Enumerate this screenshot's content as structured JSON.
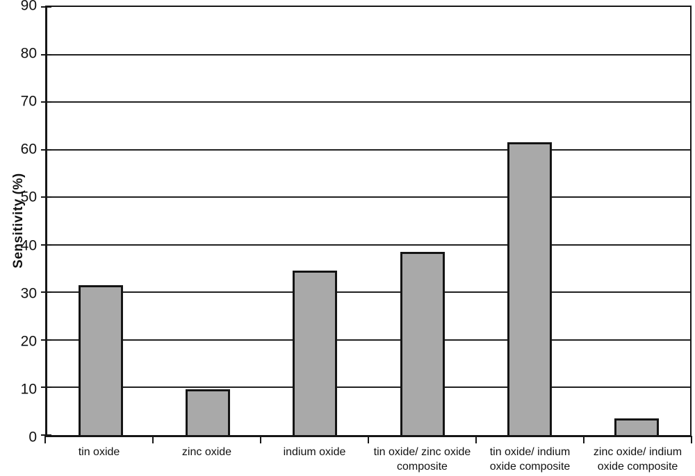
{
  "chart_data": {
    "type": "bar",
    "title": "",
    "xlabel": "",
    "ylabel": "Sensitivity (%)",
    "ylim": [
      0,
      90
    ],
    "ytick_step": 10,
    "grid": true,
    "legend": false,
    "categories": [
      "tin oxide",
      "zinc oxide",
      "indium oxide",
      "tin oxide/ zinc oxide\ncomposite",
      "tin oxide/ indium\noxide composite",
      "zinc oxide/ indium\noxide composite"
    ],
    "values": [
      31.5,
      9.7,
      34.5,
      38.5,
      61.5,
      3.5
    ],
    "bar_fill": "#a9a9a9",
    "bar_border": "#141414",
    "axis_color": "#161616",
    "gridline_color": "#1f1f1f"
  }
}
